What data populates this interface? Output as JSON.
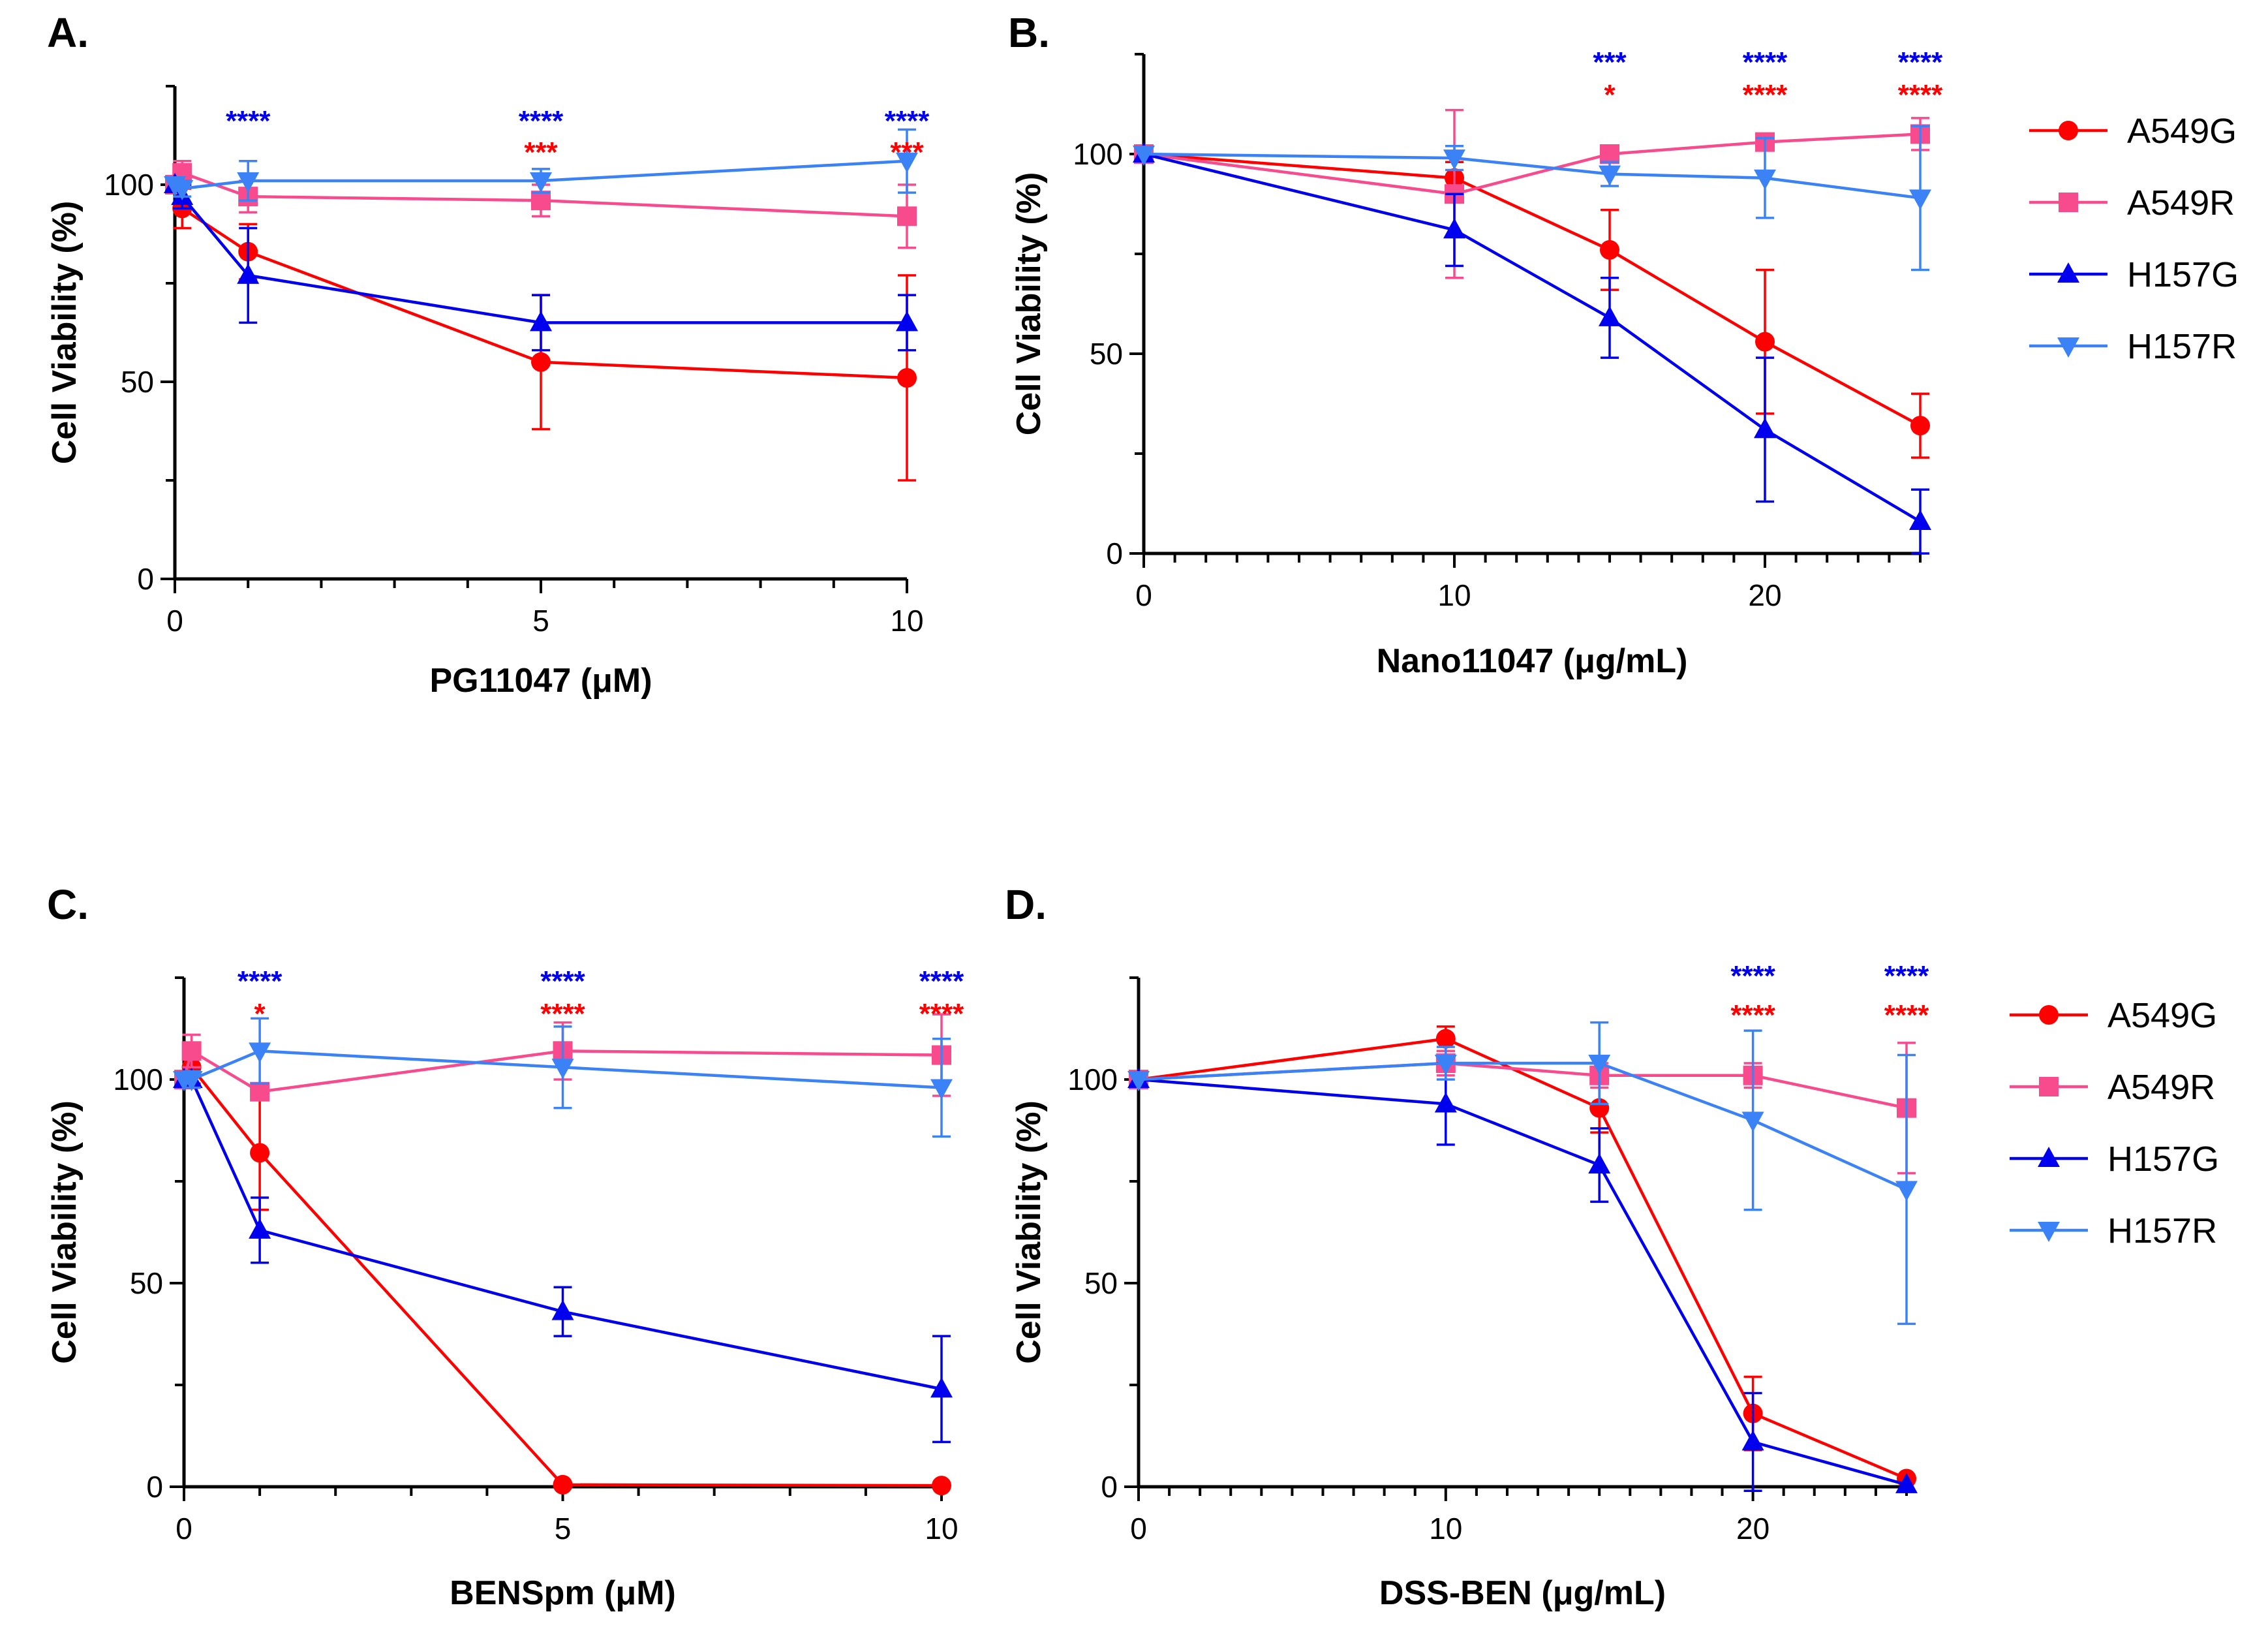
{
  "colors": {
    "A549G": "#ff0000",
    "A549R": "#f74b8e",
    "H157G": "#0000ee",
    "H157R": "#3b82f6",
    "axis": "#000000"
  },
  "legends": [
    {
      "entries": [
        {
          "name": "A549G",
          "marker": "circle"
        },
        {
          "name": "A549R",
          "marker": "square"
        },
        {
          "name": "H157G",
          "marker": "triangle-up"
        },
        {
          "name": "H157R",
          "marker": "triangle-down"
        }
      ]
    },
    {
      "entries": [
        {
          "name": "A549G",
          "marker": "circle"
        },
        {
          "name": "A549R",
          "marker": "square"
        },
        {
          "name": "H157G",
          "marker": "triangle-up"
        },
        {
          "name": "H157R",
          "marker": "triangle-down"
        }
      ]
    }
  ],
  "chart_data": [
    {
      "panel": "A.",
      "type": "line",
      "xlabel": "PG11047 (μM)",
      "ylabel": "Cell Viability (%)",
      "xlim": [
        0,
        10
      ],
      "ylim": [
        0,
        125
      ],
      "xticks": [
        0,
        5,
        10
      ],
      "xtick_labels": [
        "0",
        "5",
        "10"
      ],
      "x_minor_step": 1,
      "yticks": [
        0,
        50,
        100
      ],
      "ytick_labels": [
        "0",
        "50",
        "100"
      ],
      "y_minor_step": 25,
      "series": [
        {
          "name": "A549G",
          "x": [
            0,
            0.1,
            1,
            5,
            10
          ],
          "y": [
            100,
            94,
            83,
            55,
            51
          ],
          "err": [
            0,
            5,
            7,
            17,
            26
          ]
        },
        {
          "name": "A549R",
          "x": [
            0,
            0.1,
            1,
            5,
            10
          ],
          "y": [
            100,
            103,
            97,
            96,
            92
          ],
          "err": [
            0,
            3,
            4,
            4,
            8
          ]
        },
        {
          "name": "H157G",
          "x": [
            0,
            0.1,
            1,
            5,
            10
          ],
          "y": [
            100,
            97,
            77,
            65,
            65
          ],
          "err": [
            0,
            3,
            12,
            7,
            7
          ]
        },
        {
          "name": "H157R",
          "x": [
            0,
            0.1,
            1,
            5,
            10
          ],
          "y": [
            100,
            99,
            101,
            101,
            106
          ],
          "err": [
            0,
            2,
            5,
            3,
            8
          ]
        }
      ],
      "significance": [
        {
          "x": 1,
          "blue": "****",
          "red": ""
        },
        {
          "x": 5,
          "blue": "****",
          "red": "***"
        },
        {
          "x": 10,
          "blue": "****",
          "red": "***"
        }
      ]
    },
    {
      "panel": "B.",
      "type": "line",
      "xlabel": "Nano11047 (μg/mL)",
      "ylabel": "Cell Viability (%)",
      "xlim": [
        0,
        25
      ],
      "ylim": [
        0,
        125
      ],
      "xticks": [
        0,
        10,
        20
      ],
      "xtick_labels": [
        "0",
        "10",
        "20"
      ],
      "x_minor_step": 1,
      "yticks": [
        0,
        50,
        100
      ],
      "ytick_labels": [
        "0",
        "50",
        "100"
      ],
      "y_minor_step": 25,
      "series": [
        {
          "name": "A549G",
          "x": [
            0,
            10,
            15,
            20,
            25
          ],
          "y": [
            100,
            94,
            76,
            53,
            32
          ],
          "err": [
            0,
            4,
            10,
            18,
            8
          ]
        },
        {
          "name": "A549R",
          "x": [
            0,
            10,
            15,
            20,
            25
          ],
          "y": [
            100,
            90,
            100,
            103,
            105
          ],
          "err": [
            0,
            21,
            2,
            2,
            4
          ]
        },
        {
          "name": "H157G",
          "x": [
            0,
            10,
            15,
            20,
            25
          ],
          "y": [
            100,
            81,
            59,
            31,
            8
          ],
          "err": [
            0,
            9,
            10,
            18,
            8
          ]
        },
        {
          "name": "H157R",
          "x": [
            0,
            10,
            15,
            20,
            25
          ],
          "y": [
            100,
            99,
            95,
            94,
            89
          ],
          "err": [
            0,
            3,
            3,
            10,
            18
          ]
        }
      ],
      "significance": [
        {
          "x": 15,
          "blue": "***",
          "red": "*"
        },
        {
          "x": 20,
          "blue": "****",
          "red": "****"
        },
        {
          "x": 25,
          "blue": "****",
          "red": "****"
        }
      ]
    },
    {
      "panel": "C.",
      "type": "line",
      "xlabel": "BENSpm (μM)",
      "ylabel": "Cell Viability (%)",
      "xlim": [
        0,
        10
      ],
      "ylim": [
        0,
        125
      ],
      "xticks": [
        0,
        5,
        10
      ],
      "xtick_labels": [
        "0",
        "5",
        "10"
      ],
      "x_minor_step": 1,
      "yticks": [
        0,
        50,
        100
      ],
      "ytick_labels": [
        "0",
        "50",
        "100"
      ],
      "y_minor_step": 25,
      "series": [
        {
          "name": "A549G",
          "x": [
            0,
            0.1,
            1,
            5,
            10
          ],
          "y": [
            100,
            103,
            82,
            0.5,
            0.3
          ],
          "err": [
            0,
            4,
            14,
            0,
            0
          ]
        },
        {
          "name": "A549R",
          "x": [
            0,
            0.1,
            1,
            5,
            10
          ],
          "y": [
            100,
            107,
            97,
            107,
            106
          ],
          "err": [
            0,
            4,
            2,
            7,
            10
          ]
        },
        {
          "name": "H157G",
          "x": [
            0,
            0.1,
            1,
            5,
            10
          ],
          "y": [
            100,
            100,
            63,
            43,
            24
          ],
          "err": [
            0,
            2,
            8,
            6,
            13
          ]
        },
        {
          "name": "H157R",
          "x": [
            0,
            0.1,
            1,
            5,
            10
          ],
          "y": [
            100,
            100,
            107,
            103,
            98
          ],
          "err": [
            0,
            2,
            8,
            10,
            12
          ]
        }
      ],
      "significance": [
        {
          "x": 1,
          "blue": "****",
          "red": "*"
        },
        {
          "x": 5,
          "blue": "****",
          "red": "****"
        },
        {
          "x": 10,
          "blue": "****",
          "red": "****"
        }
      ]
    },
    {
      "panel": "D.",
      "type": "line",
      "xlabel": "DSS-BEN (μg/mL)",
      "ylabel": "Cell Viability (%)",
      "xlim": [
        0,
        25
      ],
      "ylim": [
        0,
        125
      ],
      "xticks": [
        0,
        10,
        20
      ],
      "xtick_labels": [
        "0",
        "10",
        "20"
      ],
      "x_minor_step": 1,
      "yticks": [
        0,
        50,
        100
      ],
      "ytick_labels": [
        "0",
        "50",
        "100"
      ],
      "y_minor_step": 25,
      "series": [
        {
          "name": "A549G",
          "x": [
            0,
            10,
            15,
            20,
            25
          ],
          "y": [
            100,
            110,
            93,
            18,
            2
          ],
          "err": [
            0,
            3,
            6,
            9,
            0
          ]
        },
        {
          "name": "A549R",
          "x": [
            0,
            10,
            15,
            20,
            25
          ],
          "y": [
            100,
            104,
            101,
            101,
            93
          ],
          "err": [
            0,
            3,
            3,
            3,
            16
          ]
        },
        {
          "name": "H157G",
          "x": [
            0,
            10,
            15,
            20,
            25
          ],
          "y": [
            100,
            94,
            79,
            11,
            0.5
          ],
          "err": [
            0,
            10,
            9,
            12,
            0
          ]
        },
        {
          "name": "H157R",
          "x": [
            0,
            10,
            15,
            20,
            25
          ],
          "y": [
            100,
            104,
            104,
            90,
            73
          ],
          "err": [
            0,
            4,
            10,
            22,
            33
          ]
        }
      ],
      "significance": [
        {
          "x": 20,
          "blue": "****",
          "red": "****"
        },
        {
          "x": 25,
          "blue": "****",
          "red": "****"
        }
      ]
    }
  ]
}
